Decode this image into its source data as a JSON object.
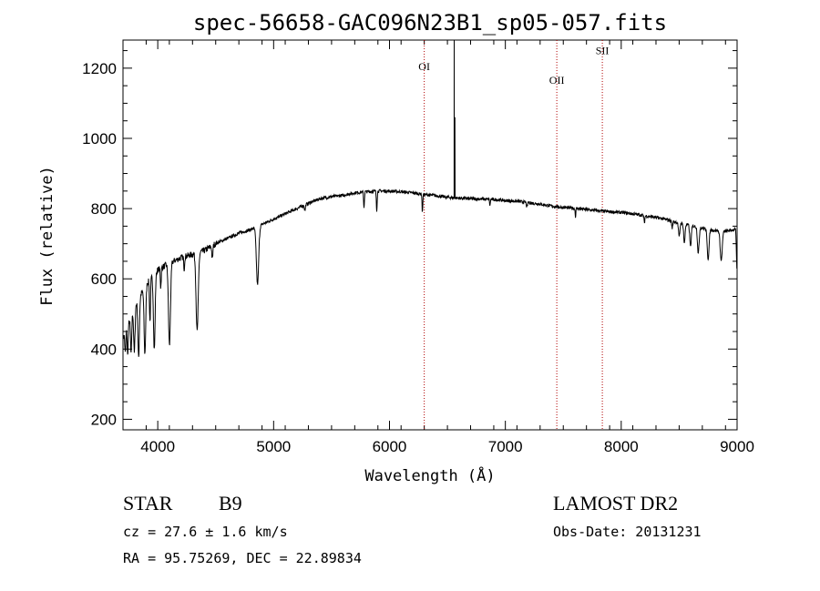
{
  "chart_data": {
    "type": "line",
    "title": "spec-56658-GAC096N23B1_sp05-057.fits",
    "xlabel": "Wavelength (Å)",
    "ylabel": "Flux (relative)",
    "xlim": [
      3700,
      9000
    ],
    "ylim": [
      170,
      1280
    ],
    "xticks": [
      4000,
      5000,
      6000,
      7000,
      8000,
      9000
    ],
    "yticks": [
      200,
      400,
      600,
      800,
      1000,
      1200
    ],
    "grid": false,
    "series": [
      {
        "color": "#000000",
        "continuum": [
          [
            3700,
            430
          ],
          [
            3800,
            520
          ],
          [
            3900,
            585
          ],
          [
            4000,
            625
          ],
          [
            4100,
            645
          ],
          [
            4200,
            660
          ],
          [
            4300,
            670
          ],
          [
            4400,
            680
          ],
          [
            4500,
            700
          ],
          [
            4600,
            715
          ],
          [
            4700,
            730
          ],
          [
            4800,
            740
          ],
          [
            4900,
            755
          ],
          [
            5000,
            770
          ],
          [
            5100,
            785
          ],
          [
            5200,
            800
          ],
          [
            5300,
            815
          ],
          [
            5400,
            828
          ],
          [
            5500,
            834
          ],
          [
            5600,
            838
          ],
          [
            5700,
            845
          ],
          [
            5800,
            848
          ],
          [
            5900,
            850
          ],
          [
            6000,
            850
          ],
          [
            6100,
            848
          ],
          [
            6200,
            845
          ],
          [
            6300,
            840
          ],
          [
            6400,
            837
          ],
          [
            6500,
            832
          ],
          [
            6600,
            830
          ],
          [
            6700,
            828
          ],
          [
            6800,
            827
          ],
          [
            6900,
            826
          ],
          [
            7000,
            823
          ],
          [
            7100,
            821
          ],
          [
            7200,
            817
          ],
          [
            7300,
            813
          ],
          [
            7400,
            807
          ],
          [
            7500,
            803
          ],
          [
            7600,
            801
          ],
          [
            7700,
            797
          ],
          [
            7800,
            794
          ],
          [
            7900,
            791
          ],
          [
            8000,
            789
          ],
          [
            8100,
            785
          ],
          [
            8200,
            780
          ],
          [
            8300,
            775
          ],
          [
            8400,
            768
          ],
          [
            8500,
            759
          ],
          [
            8600,
            752
          ],
          [
            8700,
            745
          ],
          [
            8800,
            738
          ],
          [
            8900,
            735
          ],
          [
            9000,
            742
          ]
        ],
        "absorption_lines": [
          {
            "x": 3720,
            "depth": 60,
            "width": 6
          },
          {
            "x": 3740,
            "depth": 85,
            "width": 6
          },
          {
            "x": 3770,
            "depth": 110,
            "width": 7
          },
          {
            "x": 3798,
            "depth": 130,
            "width": 8
          },
          {
            "x": 3835,
            "depth": 165,
            "width": 9
          },
          {
            "x": 3889,
            "depth": 190,
            "width": 10
          },
          {
            "x": 3933,
            "depth": 120,
            "width": 6
          },
          {
            "x": 3970,
            "depth": 215,
            "width": 10
          },
          {
            "x": 4026,
            "depth": 55,
            "width": 5
          },
          {
            "x": 4101,
            "depth": 235,
            "width": 12
          },
          {
            "x": 4228,
            "depth": 35,
            "width": 5
          },
          {
            "x": 4340,
            "depth": 225,
            "width": 13
          },
          {
            "x": 4471,
            "depth": 40,
            "width": 6
          },
          {
            "x": 4861,
            "depth": 165,
            "width": 14
          },
          {
            "x": 5270,
            "depth": 15,
            "width": 6
          },
          {
            "x": 5780,
            "depth": 45,
            "width": 5
          },
          {
            "x": 5890,
            "depth": 55,
            "width": 5
          },
          {
            "x": 6284,
            "depth": 55,
            "width": 4
          },
          {
            "x": 6867,
            "depth": 20,
            "width": 4
          },
          {
            "x": 7186,
            "depth": 15,
            "width": 6
          },
          {
            "x": 7605,
            "depth": 25,
            "width": 4
          },
          {
            "x": 8200,
            "depth": 20,
            "width": 5
          },
          {
            "x": 8440,
            "depth": 20,
            "width": 6
          },
          {
            "x": 8500,
            "depth": 40,
            "width": 8
          },
          {
            "x": 8545,
            "depth": 55,
            "width": 8
          },
          {
            "x": 8598,
            "depth": 60,
            "width": 9
          },
          {
            "x": 8665,
            "depth": 75,
            "width": 10
          },
          {
            "x": 8750,
            "depth": 85,
            "width": 11
          },
          {
            "x": 8863,
            "depth": 85,
            "width": 12
          },
          {
            "x": 8998,
            "depth": 110,
            "width": 6
          }
        ],
        "emission_spikes": [
          {
            "x": 6558,
            "peak": 1290
          },
          {
            "x": 6565,
            "peak": 1060
          }
        ]
      }
    ],
    "annotations": [
      {
        "label": "OI",
        "x": 6300,
        "label_y": 1195
      },
      {
        "label": "OII",
        "x": 7444,
        "label_y": 1155
      },
      {
        "label": "SII",
        "x": 7837,
        "label_y": 1240
      }
    ]
  },
  "info": {
    "object_type": "STAR",
    "subclass": "B9",
    "cz_text": "cz = 27.6 ± 1.6 km/s",
    "coord_text": "RA =  95.75269, DEC =  22.89834",
    "survey": "LAMOST DR2",
    "obs_date": "Obs-Date: 20131231"
  }
}
